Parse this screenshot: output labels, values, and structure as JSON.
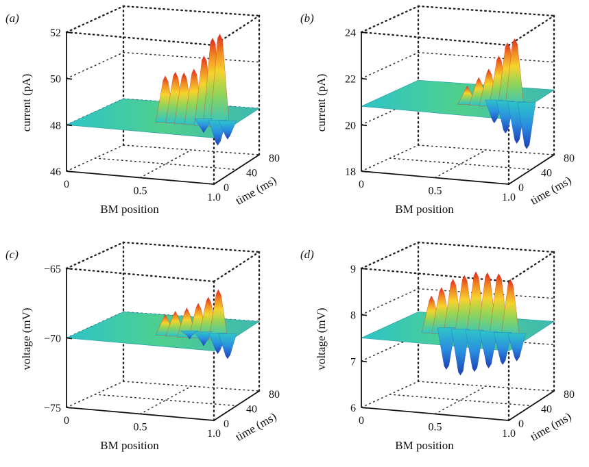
{
  "colors": {
    "surface_base": "#2ec4c8",
    "peak": "#e3261a",
    "trough": "#1d3fb5",
    "mid": "#8fd45a",
    "high": "#f6d32c"
  },
  "chart_data": [
    {
      "id": "a",
      "panel_label": "(a)",
      "type": "surface",
      "xlabel": "BM position",
      "ylabel": "current (pA)",
      "tlabel": "time (ms)",
      "xticks": [
        "0",
        "0.5",
        "1.0"
      ],
      "tticks": [
        "0",
        "40",
        "80"
      ],
      "zticks": [
        "46",
        "48",
        "50",
        "52"
      ],
      "zlim": [
        46,
        52
      ],
      "xlim": [
        0,
        1.0
      ],
      "tlim": [
        0,
        80
      ],
      "baseline": 48.0,
      "up_peaks": [
        {
          "x": 0.55,
          "z": 50.0
        },
        {
          "x": 0.62,
          "z": 50.2
        },
        {
          "x": 0.68,
          "z": 50.2
        },
        {
          "x": 0.75,
          "z": 50.4
        },
        {
          "x": 0.82,
          "z": 51.0
        },
        {
          "x": 0.88,
          "z": 51.8
        },
        {
          "x": 0.93,
          "z": 52.0
        }
      ],
      "down_troughs": [
        {
          "x": 0.75,
          "z": 47.4
        },
        {
          "x": 0.85,
          "z": 46.9
        },
        {
          "x": 0.92,
          "z": 47.2
        }
      ]
    },
    {
      "id": "b",
      "panel_label": "(b)",
      "type": "surface",
      "xlabel": "BM position",
      "ylabel": "current (pA)",
      "tlabel": "time (ms)",
      "xticks": [
        "0",
        "0.5",
        "1.0"
      ],
      "tticks": [
        "0",
        "40",
        "80"
      ],
      "zticks": [
        "18",
        "20",
        "22",
        "24"
      ],
      "zlim": [
        18,
        24
      ],
      "xlim": [
        0,
        1.0
      ],
      "tlim": [
        0,
        80
      ],
      "baseline": 20.8,
      "up_peaks": [
        {
          "x": 0.6,
          "z": 21.6
        },
        {
          "x": 0.68,
          "z": 22.0
        },
        {
          "x": 0.75,
          "z": 22.4
        },
        {
          "x": 0.82,
          "z": 23.0
        },
        {
          "x": 0.88,
          "z": 23.6
        },
        {
          "x": 0.93,
          "z": 23.8
        }
      ],
      "down_troughs": [
        {
          "x": 0.72,
          "z": 19.8
        },
        {
          "x": 0.8,
          "z": 19.4
        },
        {
          "x": 0.88,
          "z": 19.0
        },
        {
          "x": 0.95,
          "z": 18.8
        }
      ]
    },
    {
      "id": "c",
      "panel_label": "(c)",
      "type": "surface",
      "xlabel": "BM position",
      "ylabel": "voltage (mV)",
      "tlabel": "time (ms)",
      "xticks": [
        "0",
        "0.5",
        "1.0"
      ],
      "tticks": [
        "0",
        "40",
        "80"
      ],
      "zticks": [
        "−75",
        "−70",
        "−65"
      ],
      "zlim": [
        -75,
        -65
      ],
      "xlim": [
        0,
        1.0
      ],
      "tlim": [
        0,
        80
      ],
      "baseline": -70.0,
      "up_peaks": [
        {
          "x": 0.55,
          "z": -68.5
        },
        {
          "x": 0.62,
          "z": -68.2
        },
        {
          "x": 0.7,
          "z": -67.9
        },
        {
          "x": 0.78,
          "z": -67.5
        },
        {
          "x": 0.85,
          "z": -67.0
        },
        {
          "x": 0.92,
          "z": -66.4
        }
      ],
      "down_troughs": [
        {
          "x": 0.65,
          "z": -70.6
        },
        {
          "x": 0.75,
          "z": -71.0
        },
        {
          "x": 0.85,
          "z": -71.5
        },
        {
          "x": 0.92,
          "z": -71.8
        }
      ]
    },
    {
      "id": "d",
      "panel_label": "(d)",
      "type": "surface",
      "xlabel": "BM position",
      "ylabel": "voltage (mV)",
      "tlabel": "time (ms)",
      "xticks": [
        "0",
        "0.5",
        "1.0"
      ],
      "tticks": [
        "0",
        "40",
        "80"
      ],
      "zticks": [
        "6",
        "7",
        "8",
        "9"
      ],
      "zlim": [
        6,
        9
      ],
      "xlim": [
        0,
        1.0
      ],
      "tlim": [
        0,
        80
      ],
      "baseline": 7.5,
      "up_peaks": [
        {
          "x": 0.35,
          "z": 8.3
        },
        {
          "x": 0.42,
          "z": 8.5
        },
        {
          "x": 0.5,
          "z": 8.7
        },
        {
          "x": 0.58,
          "z": 8.8
        },
        {
          "x": 0.66,
          "z": 8.9
        },
        {
          "x": 0.74,
          "z": 8.9
        },
        {
          "x": 0.82,
          "z": 8.9
        },
        {
          "x": 0.9,
          "z": 8.8
        }
      ],
      "down_troughs": [
        {
          "x": 0.38,
          "z": 6.6
        },
        {
          "x": 0.48,
          "z": 6.5
        },
        {
          "x": 0.58,
          "z": 6.6
        },
        {
          "x": 0.68,
          "z": 6.7
        },
        {
          "x": 0.78,
          "z": 6.8
        },
        {
          "x": 0.88,
          "z": 6.9
        }
      ]
    }
  ]
}
